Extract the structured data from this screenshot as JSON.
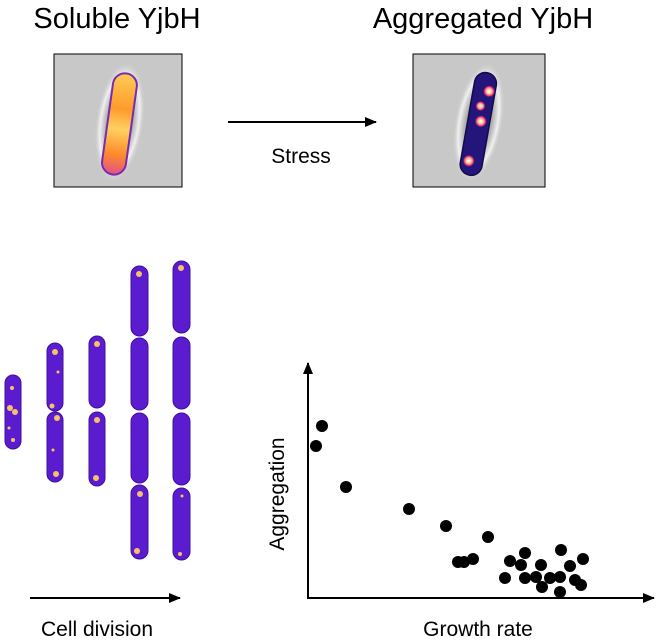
{
  "top": {
    "left_title": "Soluble YjbH",
    "right_title": "Aggregated YjbH",
    "arrow_label": "Stress"
  },
  "division": {
    "label": "Cell division",
    "cell_color": "#5b1ccf",
    "spot_color": "#f5c26a"
  },
  "scatter": {
    "xlabel": "Growth rate",
    "ylabel": "Aggregation"
  },
  "colors": {
    "line": "#000000",
    "micrograph_bg": "#c9c9c9",
    "bright_fill": "#ffb347",
    "dark_cell": "#20146a"
  }
}
